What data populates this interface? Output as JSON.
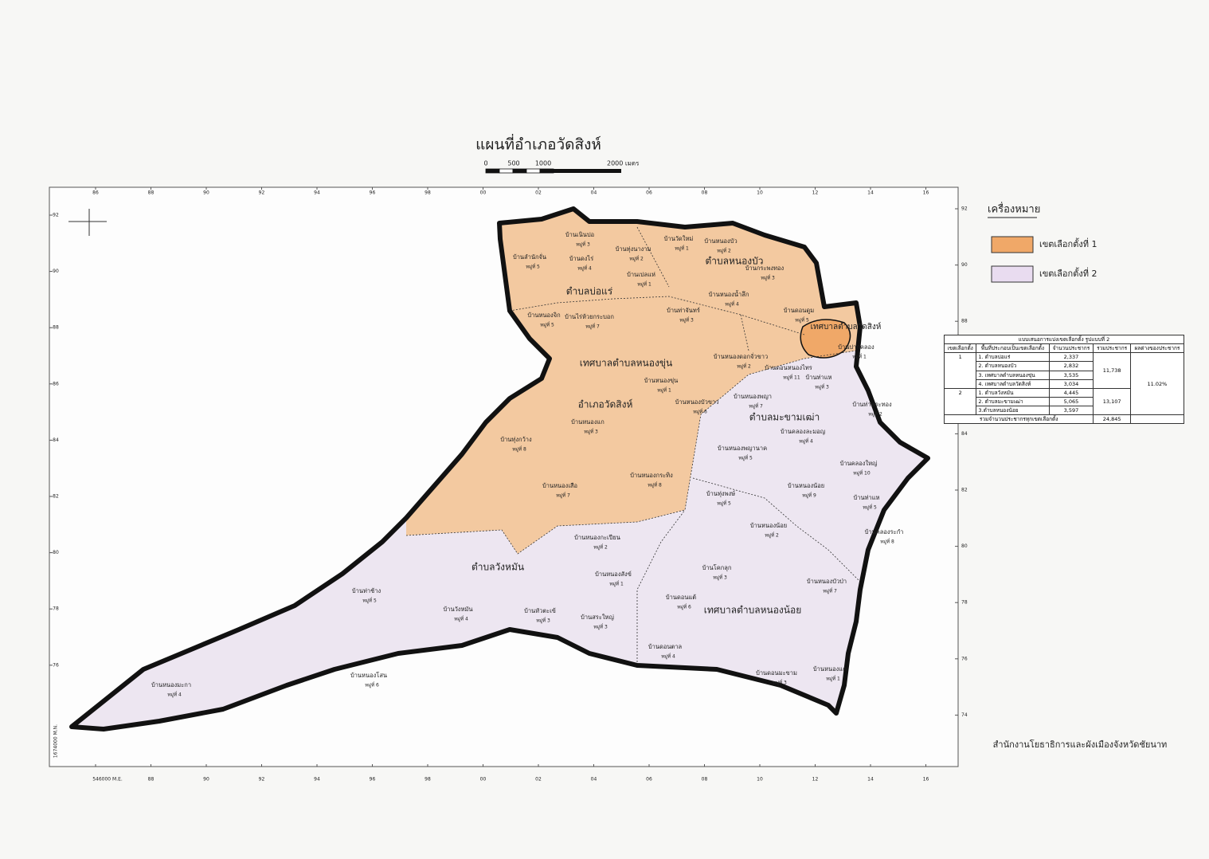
{
  "title": "แผนที่อำเภอวัดสิงห์",
  "scale": {
    "labels": [
      "0",
      "500",
      "1000",
      "2000 เมตร"
    ]
  },
  "grid": {
    "top": [
      "86",
      "88",
      "90",
      "92",
      "94",
      "96",
      "98",
      "00",
      "02",
      "04",
      "06",
      "08",
      "10",
      "12",
      "14",
      "16"
    ],
    "bottom": [
      "546000 M.E.",
      "88",
      "90",
      "92",
      "94",
      "96",
      "98",
      "00",
      "02",
      "04",
      "06",
      "08",
      "10",
      "12",
      "14",
      "16"
    ],
    "left": [
      "92",
      "90",
      "88",
      "86",
      "84",
      "82",
      "80",
      "78",
      "76"
    ],
    "left_corner": "1674000 M.N.",
    "right": [
      "92",
      "90",
      "88",
      "86",
      "84",
      "82",
      "80",
      "78",
      "76",
      "74"
    ]
  },
  "regions": [
    "ตำบลบ่อแร่",
    "ตำบลหนองบัว",
    "เทศบาลตำบลหนองขุ่น",
    "อำเภอวัดสิงห์",
    "ตำบลมะขามเฒ่า",
    "ตำบลวังหมัน",
    "เทศบาลตำบลหนองน้อย",
    "เทศบาลตำบลวัดสิงห์"
  ],
  "villages": [
    {
      "name": "บ้านเนินปอ",
      "moo": "หมู่ที่ 3"
    },
    {
      "name": "บ้านลำนักจั่น",
      "moo": "หมู่ที่ 5"
    },
    {
      "name": "บ้านดงไร่",
      "moo": "หมู่ที่ 4"
    },
    {
      "name": "บ้านทุ่งนางาม",
      "moo": "หมู่ที่ 2"
    },
    {
      "name": "บ้านวัดใหม่",
      "moo": "หมู่ที่ 1"
    },
    {
      "name": "บ้านหนองบัว",
      "moo": "หมู่ที่ 2"
    },
    {
      "name": "บ้านเปลแห่",
      "moo": "หมู่ที่ 1"
    },
    {
      "name": "บ้านกระพงทอง",
      "moo": "หมู่ที่ 3"
    },
    {
      "name": "บ้านหนองน้ำลึก",
      "moo": "หมู่ที่ 4"
    },
    {
      "name": "บ้านดอนดูม",
      "moo": "หมู่ที่ 5"
    },
    {
      "name": "บ้านหนองจิก",
      "moo": "หมู่ที่ 5"
    },
    {
      "name": "บ้านไร่ห้วยกระบอก",
      "moo": "หมู่ที่ 7"
    },
    {
      "name": "บ้านท่าจันทร์",
      "moo": "หมู่ที่ 3"
    },
    {
      "name": "บ้านปากคลอง",
      "moo": "หมู่ที่ 1"
    },
    {
      "name": "บ้านหนองดอกจั่วขาว",
      "moo": "หมู่ที่ 2"
    },
    {
      "name": "บ้านดอนหนองไทร",
      "moo": "หมู่ที่ 11"
    },
    {
      "name": "บ้านท่าแห",
      "moo": "หมู่ที่ 3"
    },
    {
      "name": "บ้านหนองขุ่น",
      "moo": "หมู่ที่ 1"
    },
    {
      "name": "บ้านหนองบัวขาว",
      "moo": "หมู่ที่ 6"
    },
    {
      "name": "บ้านหนองพญา",
      "moo": "หมู่ที่ 7"
    },
    {
      "name": "บ้านท่าพระทอง",
      "moo": "หมู่ที่ 2"
    },
    {
      "name": "บ้านหนองแก",
      "moo": "หมู่ที่ 3"
    },
    {
      "name": "บ้านคลองละมอญ",
      "moo": "หมู่ที่ 4"
    },
    {
      "name": "บ้านทุ่งกว้าง",
      "moo": "หมู่ที่ 8"
    },
    {
      "name": "บ้านหนองพญานาค",
      "moo": "หมู่ที่ 5"
    },
    {
      "name": "บ้านคลองใหญ่",
      "moo": "หมู่ที่ 10"
    },
    {
      "name": "บ้านหนองกระทิง",
      "moo": "หมู่ที่ 8"
    },
    {
      "name": "บ้านหนองเสือ",
      "moo": "หมู่ที่ 7"
    },
    {
      "name": "บ้านทุ่งพงษ์",
      "moo": "หมู่ที่ 5"
    },
    {
      "name": "บ้านหนองน้อย",
      "moo": "หมู่ที่ 9"
    },
    {
      "name": "บ้านท่าแห",
      "moo": "หมู่ที่ 5"
    },
    {
      "name": "บ้านหนองน้อย",
      "moo": "หมู่ที่ 2"
    },
    {
      "name": "บ้านคลองระกำ",
      "moo": "หมู่ที่ 8"
    },
    {
      "name": "บ้านหนองกะเปียน",
      "moo": "หมู่ที่ 2"
    },
    {
      "name": "บ้านโคกลุก",
      "moo": "หมู่ที่ 3"
    },
    {
      "name": "บ้านหนองสังข์",
      "moo": "หมู่ที่ 1"
    },
    {
      "name": "บ้านหนองบัวป่า",
      "moo": "หมู่ที่ 7"
    },
    {
      "name": "บ้านท่าช้าง",
      "moo": "หมู่ที่ 5"
    },
    {
      "name": "บ้านดอนแต้",
      "moo": "หมู่ที่ 6"
    },
    {
      "name": "บ้านวังหมัน",
      "moo": "หมู่ที่ 4"
    },
    {
      "name": "บ้านหัวตะเข้",
      "moo": "หมู่ที่ 3"
    },
    {
      "name": "บ้านสระใหญ่",
      "moo": "หมู่ที่ 3"
    },
    {
      "name": "บ้านดอนตาล",
      "moo": "หมู่ที่ 4"
    },
    {
      "name": "บ้านหนองโสน",
      "moo": "หมู่ที่ 6"
    },
    {
      "name": "บ้านดอนมะขาม",
      "moo": "หมู่ที่ 3"
    },
    {
      "name": "บ้านหนองแค",
      "moo": "หมู่ที่ 1"
    },
    {
      "name": "บ้านหนองมะกา",
      "moo": "หมู่ที่ 4"
    }
  ],
  "legend": {
    "title": "เครื่องหมาย",
    "items": [
      "เขตเลือกตั้งที่ 1",
      "เขตเลือกตั้งที่ 2"
    ]
  },
  "table": {
    "title": "แบบเสนอการแบ่งเขตเลือกตั้ง รูปแบบที่ 2",
    "header": [
      "เขตเลือกตั้ง",
      "พื้นที่ประกอบเป็นเขตเลือกตั้ง",
      "จำนวนประชากร",
      "รวมประชากร",
      "ผลต่างของประชากร"
    ],
    "zones": [
      {
        "zone": "1",
        "areas": [
          {
            "name": "1. ตำบลบ่อแร่",
            "pop": "2,337"
          },
          {
            "name": "2. ตำบลหนองบัว",
            "pop": "2,832"
          },
          {
            "name": "3. เทศบาลตำบลหนองขุ่น",
            "pop": "3,535"
          },
          {
            "name": "4. เทศบาลตำบลวัดสิงห์",
            "pop": "3,034"
          }
        ],
        "total": "11,738"
      },
      {
        "zone": "2",
        "areas": [
          {
            "name": "1. ตำบลวังหมัน",
            "pop": "4,445"
          },
          {
            "name": "2. ตำบลมะขามเฒ่า",
            "pop": "5,065"
          },
          {
            "name": "3.ตำบลหนองน้อย",
            "pop": "3,597"
          }
        ],
        "total": "13,107"
      }
    ],
    "difference": "11.02%",
    "grand_label": "รวมจำนวนประชากรทุกเขตเลือกตั้ง",
    "grand_total": "24,845"
  },
  "footer": "สำนักงานโยธาธิการและผังเมืองจังหวัดชัยนาท"
}
